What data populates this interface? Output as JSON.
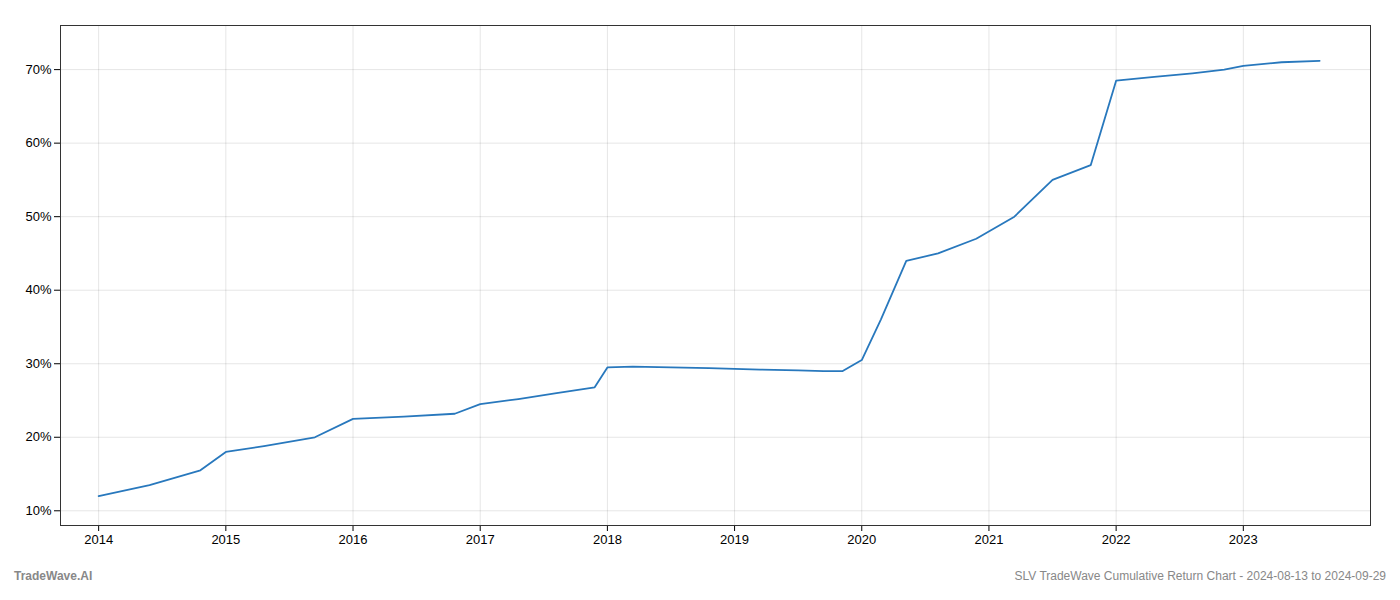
{
  "chart_data": {
    "type": "line",
    "x": [
      2014,
      2014.4,
      2014.8,
      2015.0,
      2015.3,
      2015.7,
      2016.0,
      2016.4,
      2016.8,
      2017.0,
      2017.3,
      2017.6,
      2017.9,
      2018.0,
      2018.2,
      2018.5,
      2018.8,
      2019.0,
      2019.2,
      2019.5,
      2019.7,
      2019.85,
      2020.0,
      2020.15,
      2020.35,
      2020.6,
      2020.9,
      2021.2,
      2021.5,
      2021.8,
      2022.0,
      2022.3,
      2022.6,
      2022.85,
      2023.0,
      2023.3,
      2023.6
    ],
    "values": [
      12,
      13.5,
      15.5,
      18.0,
      18.8,
      20.0,
      22.5,
      22.8,
      23.2,
      24.5,
      25.2,
      26.0,
      26.8,
      29.5,
      29.6,
      29.5,
      29.4,
      29.3,
      29.2,
      29.1,
      29.0,
      29.0,
      30.5,
      36.0,
      44.0,
      45.0,
      47.0,
      50.0,
      55.0,
      57.0,
      68.5,
      69.0,
      69.5,
      70.0,
      70.5,
      71.0,
      71.2
    ],
    "color": "#2878bd",
    "xlim": [
      2013.7,
      2024.0
    ],
    "xticks": [
      2014,
      2015,
      2016,
      2017,
      2018,
      2019,
      2020,
      2021,
      2022,
      2023
    ],
    "ylim": [
      8,
      76
    ],
    "yticks": [
      {
        "value": 10,
        "label": "10%"
      },
      {
        "value": 20,
        "label": "20%"
      },
      {
        "value": 30,
        "label": "30%"
      },
      {
        "value": 40,
        "label": "40%"
      },
      {
        "value": 50,
        "label": "50%"
      },
      {
        "value": 60,
        "label": "60%"
      },
      {
        "value": 70,
        "label": "70%"
      }
    ],
    "grid": true,
    "annotations": [
      "TradeWave.AI",
      "SLV TradeWave Cumulative Return Chart - 2024-08-13 to 2024-09-29"
    ]
  }
}
